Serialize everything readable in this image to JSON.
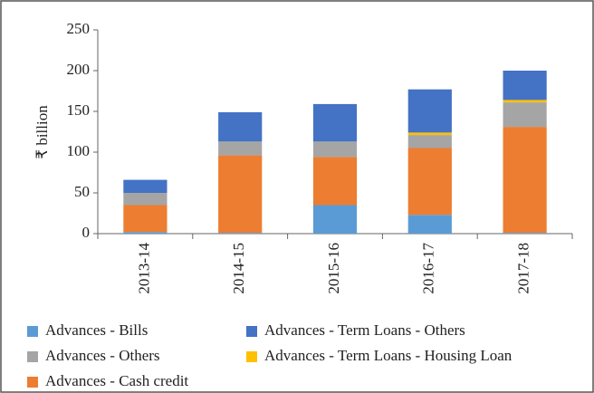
{
  "chart_data": {
    "type": "stacked_bar",
    "y_label": "₹ billion",
    "categories": [
      "2013-14",
      "2014-15",
      "2015-16",
      "2016-17",
      "2017-18"
    ],
    "series": [
      {
        "name": "Advances - Bills",
        "color": "#5b9bd5",
        "values": [
          2,
          1,
          35,
          23,
          1
        ]
      },
      {
        "name": "Advances - Cash credit",
        "color": "#ed7d31",
        "values": [
          33,
          95,
          59,
          82,
          130
        ]
      },
      {
        "name": "Advances - Others",
        "color": "#a5a5a5",
        "values": [
          15,
          17,
          19,
          16,
          30
        ]
      },
      {
        "name": "Advances - Term Loans - Housing Loan",
        "color": "#ffc000",
        "values": [
          0,
          0,
          0,
          3,
          3
        ]
      },
      {
        "name": "Advances - Term Loans - Others",
        "color": "#4472c4",
        "values": [
          16,
          36,
          46,
          53,
          36
        ]
      }
    ],
    "ylim": [
      0,
      250
    ],
    "yticks": [
      0,
      50,
      100,
      150,
      200,
      250
    ]
  }
}
